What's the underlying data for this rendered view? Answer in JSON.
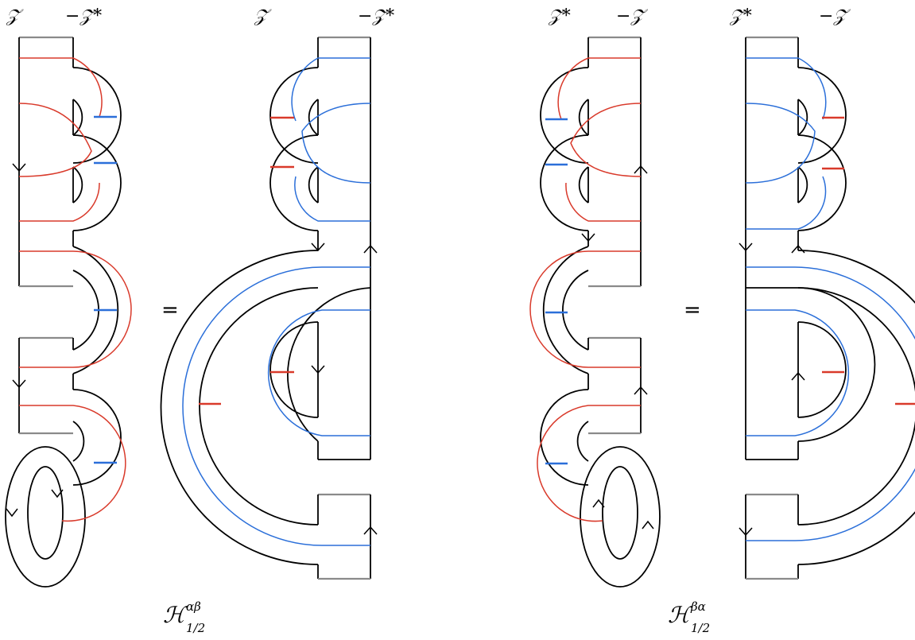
{
  "labels": {
    "p1_left": "𝒵",
    "p1_right": "−𝒵*",
    "p2_left": "𝒵",
    "p2_right": "−𝒵*",
    "p3_left": "𝒵*",
    "p3_right": "−𝒵",
    "p4_left": "𝒵*",
    "p4_right": "−𝒵"
  },
  "equals_1": "=",
  "equals_2": "=",
  "caption_1": {
    "base": "ℋ",
    "sup": "αβ",
    "sub": "1/2"
  },
  "caption_2": {
    "base": "ℋ",
    "sup": "βα",
    "sub": "1/2"
  },
  "colors": {
    "red": "#d93a2b",
    "blue": "#2b6fd9",
    "boundary": "#8a8a8a"
  }
}
